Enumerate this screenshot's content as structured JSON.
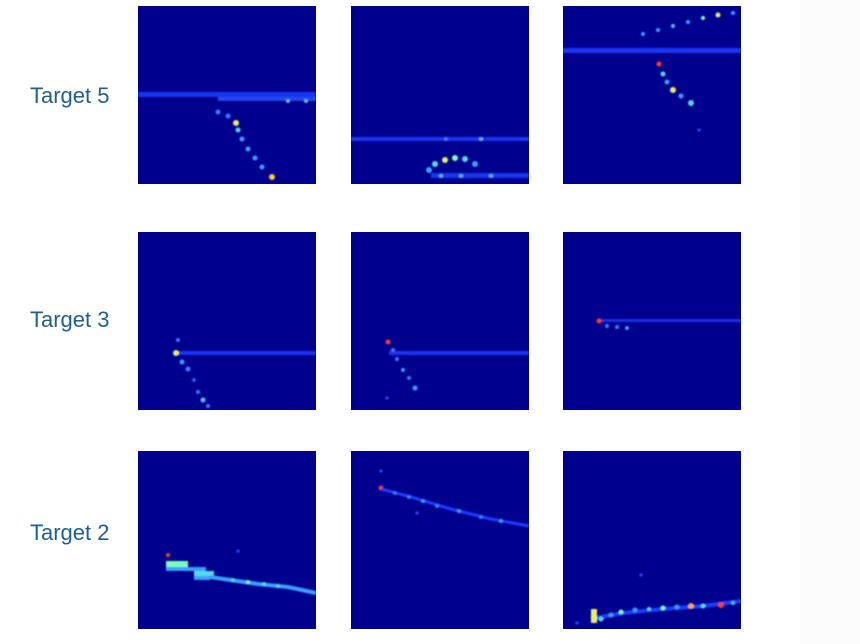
{
  "colors": {
    "background": "#00008f",
    "label": "#1f5f96"
  },
  "rows": [
    {
      "label": "Target 5",
      "panels": [
        "target5-panel1",
        "target5-panel2",
        "target5-panel3"
      ]
    },
    {
      "label": "Target 3",
      "panels": [
        "target3-panel1",
        "target3-panel2",
        "target3-panel3"
      ]
    },
    {
      "label": "Target 2",
      "panels": [
        "target2-panel1",
        "target2-panel2",
        "target2-panel3"
      ]
    }
  ]
}
